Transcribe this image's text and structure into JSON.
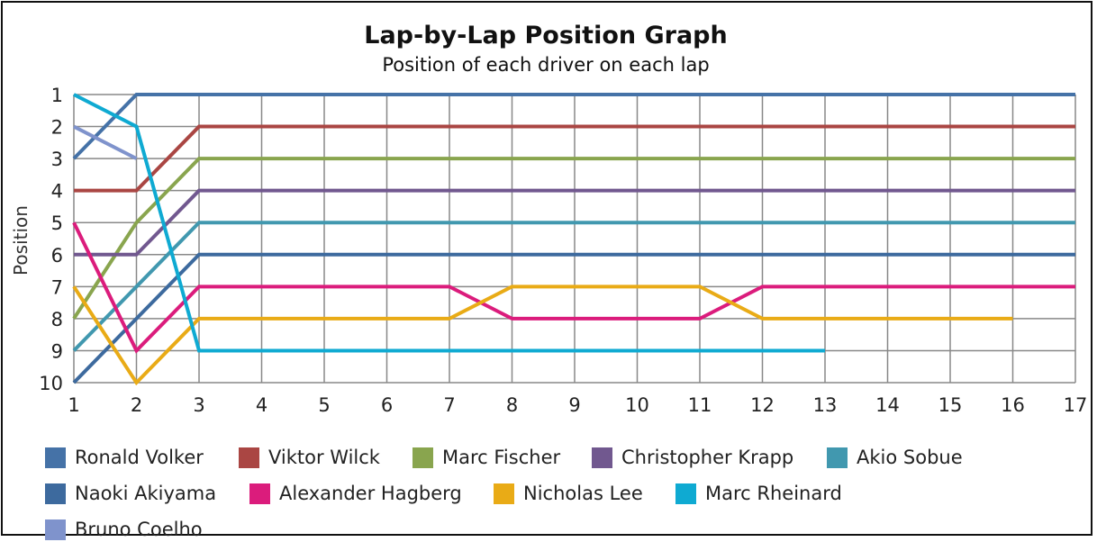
{
  "chart_data": {
    "type": "line",
    "title": "Lap-by-Lap Position Graph",
    "subtitle": "Position of each driver on each lap",
    "xlabel": "",
    "ylabel": "Position",
    "x": [
      1,
      2,
      3,
      4,
      5,
      6,
      7,
      8,
      9,
      10,
      11,
      12,
      13,
      14,
      15,
      16,
      17
    ],
    "xlim": [
      1,
      17
    ],
    "ylim": [
      1,
      10
    ],
    "y_inverted": true,
    "grid": true,
    "legend_position": "bottom",
    "series": [
      {
        "name": "Ronald Volker",
        "color": "#4572A7",
        "values": [
          3,
          1,
          1,
          1,
          1,
          1,
          1,
          1,
          1,
          1,
          1,
          1,
          1,
          1,
          1,
          1,
          1
        ]
      },
      {
        "name": "Viktor Wilck",
        "color": "#AA4643",
        "values": [
          4,
          4,
          2,
          2,
          2,
          2,
          2,
          2,
          2,
          2,
          2,
          2,
          2,
          2,
          2,
          2,
          2
        ]
      },
      {
        "name": "Marc Fischer",
        "color": "#89A54E",
        "values": [
          8,
          5,
          3,
          3,
          3,
          3,
          3,
          3,
          3,
          3,
          3,
          3,
          3,
          3,
          3,
          3,
          3
        ]
      },
      {
        "name": "Christopher Krapp",
        "color": "#71588F",
        "values": [
          6,
          6,
          4,
          4,
          4,
          4,
          4,
          4,
          4,
          4,
          4,
          4,
          4,
          4,
          4,
          4,
          4
        ]
      },
      {
        "name": "Akio Sobue",
        "color": "#4198AF",
        "values": [
          9,
          7,
          5,
          5,
          5,
          5,
          5,
          5,
          5,
          5,
          5,
          5,
          5,
          5,
          5,
          5,
          5
        ]
      },
      {
        "name": "Naoki Akiyama",
        "color": "#3D6A9E",
        "values": [
          10,
          8,
          6,
          6,
          6,
          6,
          6,
          6,
          6,
          6,
          6,
          6,
          6,
          6,
          6,
          6,
          6
        ]
      },
      {
        "name": "Alexander Hagberg",
        "color": "#DB1C7C",
        "values": [
          5,
          9,
          7,
          7,
          7,
          7,
          7,
          8,
          8,
          8,
          8,
          7,
          7,
          7,
          7,
          7,
          7
        ]
      },
      {
        "name": "Nicholas Lee",
        "color": "#E9AB16",
        "values": [
          7,
          10,
          8,
          8,
          8,
          8,
          8,
          7,
          7,
          7,
          7,
          8,
          8,
          8,
          8,
          8,
          null
        ]
      },
      {
        "name": "Marc Rheinard",
        "color": "#0FAAD2",
        "values": [
          1,
          2,
          9,
          9,
          9,
          9,
          9,
          9,
          9,
          9,
          9,
          9,
          9,
          null,
          null,
          null,
          null
        ]
      },
      {
        "name": "Bruno Coelho",
        "color": "#7F93CC",
        "values": [
          2,
          3,
          null,
          null,
          null,
          null,
          null,
          null,
          null,
          null,
          null,
          null,
          null,
          null,
          null,
          null,
          null
        ]
      }
    ]
  }
}
